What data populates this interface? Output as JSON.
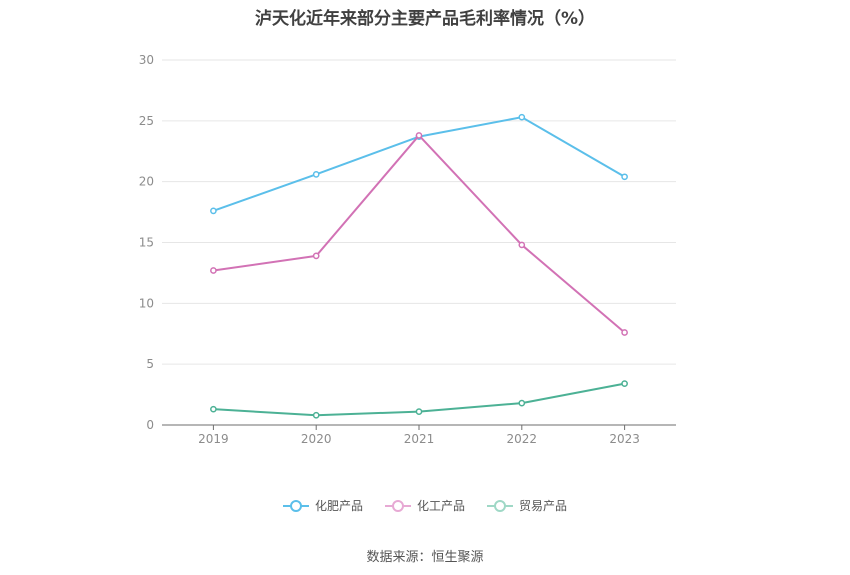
{
  "chart_data": {
    "type": "line",
    "title": "泸天化近年来部分主要产品毛利率情况（%）",
    "xlabel": "",
    "ylabel": "",
    "categories": [
      "2019",
      "2020",
      "2021",
      "2022",
      "2023"
    ],
    "ylim": [
      0,
      30
    ],
    "yticks": [
      0,
      5,
      10,
      15,
      20,
      25,
      30
    ],
    "grid": true,
    "legend_position": "bottom",
    "series": [
      {
        "name": "化肥产品",
        "color": "#5bbfea",
        "values": [
          17.6,
          20.6,
          23.7,
          25.3,
          20.4
        ]
      },
      {
        "name": "化工产品",
        "color": "#d272b5",
        "values": [
          12.7,
          13.9,
          23.8,
          14.8,
          7.6
        ]
      },
      {
        "name": "贸易产品",
        "color": "#4cb195",
        "values": [
          1.3,
          0.8,
          1.1,
          1.8,
          3.4
        ]
      }
    ]
  },
  "footer": {
    "source": "数据来源：恒生聚源"
  }
}
